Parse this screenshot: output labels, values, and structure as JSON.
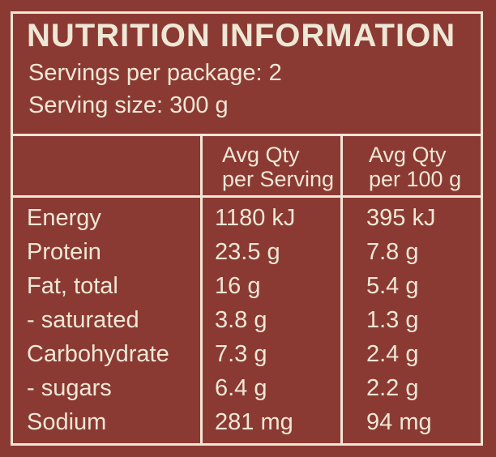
{
  "colors": {
    "background": "#8B3A33",
    "foreground": "#EEE7D6"
  },
  "label": {
    "title": "NUTRITION INFORMATION",
    "servings_line": "Servings per package: 2",
    "serving_size_line": "Serving size: 300 g",
    "table": {
      "nutrient_header": "",
      "col_headers": [
        {
          "line1": "Avg Qty",
          "line2": "per Serving"
        },
        {
          "line1": "Avg Qty",
          "line2": "per 100 g"
        }
      ],
      "rows": [
        {
          "nutrient": "Energy",
          "per_serving": "1180 kJ",
          "per_100g": "395 kJ"
        },
        {
          "nutrient": "Protein",
          "per_serving": "23.5 g",
          "per_100g": "7.8 g"
        },
        {
          "nutrient": "Fat, total",
          "per_serving": "16 g",
          "per_100g": "5.4 g"
        },
        {
          "nutrient": "- saturated",
          "per_serving": "3.8 g",
          "per_100g": "1.3 g"
        },
        {
          "nutrient": "Carbohydrate",
          "per_serving": "7.3 g",
          "per_100g": "2.4 g"
        },
        {
          "nutrient": "- sugars",
          "per_serving": "6.4 g",
          "per_100g": "2.2 g"
        },
        {
          "nutrient": "Sodium",
          "per_serving": "281 mg",
          "per_100g": "94 mg"
        }
      ]
    }
  }
}
